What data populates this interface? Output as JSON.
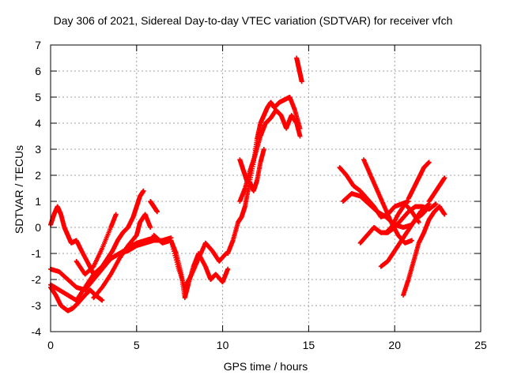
{
  "chart_data": {
    "type": "scatter",
    "title": "Day 306 of 2021, Sidereal Day-to-day VTEC variation (SDTVAR) for receiver vfch",
    "xlabel": "GPS time / hours",
    "ylabel": "SDTVAR / TECUs",
    "xlim": [
      0,
      25
    ],
    "ylim": [
      -4,
      7
    ],
    "x_ticks": [
      "0",
      "5",
      "10",
      "15",
      "20",
      "25"
    ],
    "y_ticks": [
      "-4",
      "-3",
      "-2",
      "-1",
      "0",
      "1",
      "2",
      "3",
      "4",
      "5",
      "6",
      "7"
    ],
    "grid": true,
    "marker": "plus",
    "series_color": "#ff0000",
    "series": [
      {
        "x": [
          0,
          0.5,
          1,
          1.5,
          2,
          2.5,
          3,
          3.5,
          4,
          4.5,
          5,
          5.5,
          6
        ],
        "y": [
          -1.6,
          -1.7,
          -2.0,
          -2.3,
          -2.4,
          -2.0,
          -1.6,
          -1.2,
          -1.0,
          -0.8,
          -0.6,
          -0.5,
          -0.4
        ]
      },
      {
        "x": [
          0,
          0.5,
          1,
          1.5,
          2,
          2.5,
          3,
          3.5,
          4,
          4.5,
          5,
          5.5,
          6,
          6.5,
          7
        ],
        "y": [
          -2.2,
          -2.4,
          -2.6,
          -2.8,
          -2.3,
          -1.8,
          -1.5,
          -1.2,
          -1.0,
          -0.9,
          -0.7,
          -0.6,
          -0.5,
          -0.5,
          -0.4
        ]
      },
      {
        "x": [
          0,
          0.3,
          0.6,
          1,
          1.3,
          1.6,
          2,
          2.3,
          2.6,
          3
        ],
        "y": [
          -2.3,
          -2.6,
          -3.0,
          -3.2,
          -3.1,
          -2.9,
          -2.6,
          -2.4,
          -2.6,
          -2.8
        ]
      },
      {
        "x": [
          0,
          0.2,
          0.4,
          0.6,
          0.8,
          1.0,
          1.2,
          1.5,
          1.8,
          2.2,
          2.5
        ],
        "y": [
          0.1,
          0.5,
          0.8,
          0.5,
          0.0,
          -0.3,
          -0.6,
          -0.5,
          -0.9,
          -1.4,
          -1.8
        ]
      },
      {
        "x": [
          2.5,
          3,
          3.5,
          4,
          4.5,
          5,
          5.2,
          5.5,
          5.8
        ],
        "y": [
          -2.7,
          -2.3,
          -1.8,
          -1.2,
          -0.7,
          -0.3,
          0.2,
          0.5,
          0.0
        ]
      },
      {
        "x": [
          3,
          3.3,
          3.6,
          3.9,
          4.2,
          4.5,
          4.8,
          5.0,
          5.2,
          5.4
        ],
        "y": [
          -1.5,
          -1.2,
          -0.9,
          -0.5,
          -0.2,
          0.0,
          0.4,
          0.8,
          1.2,
          1.4
        ]
      },
      {
        "x": [
          1.5,
          2,
          2.5,
          3,
          3.5,
          3.8
        ],
        "y": [
          -1.3,
          -1.8,
          -1.5,
          -0.8,
          0.0,
          0.5
        ]
      },
      {
        "x": [
          5.8,
          6.0,
          6.2
        ],
        "y": [
          1.0,
          0.8,
          0.6
        ]
      },
      {
        "x": [
          6,
          6.5,
          7,
          7.3,
          7.6,
          7.8,
          8.0,
          8.3,
          8.6,
          9,
          9.3,
          9.6,
          10,
          10.3
        ],
        "y": [
          -0.3,
          -0.6,
          -0.5,
          -1.0,
          -1.8,
          -2.7,
          -2.2,
          -1.5,
          -1.0,
          -1.5,
          -2.0,
          -1.8,
          -2.1,
          -1.6
        ]
      },
      {
        "x": [
          7,
          7.4,
          7.8,
          8.2,
          8.6,
          9.0,
          9.4,
          9.8,
          10.2
        ],
        "y": [
          -0.5,
          -1.5,
          -2.3,
          -1.8,
          -1.2,
          -0.6,
          -0.9,
          -1.3,
          -1.0
        ]
      },
      {
        "x": [
          10.3,
          10.6,
          10.9,
          11.1,
          11.3,
          11.5,
          11.8,
          12.0,
          12.2,
          12.4,
          12.6,
          12.8,
          13.0,
          13.3,
          13.6,
          13.9,
          14.2,
          14.5
        ],
        "y": [
          -1.0,
          -0.5,
          0.2,
          0.4,
          0.8,
          1.5,
          2.5,
          3.4,
          4.0,
          4.3,
          4.6,
          4.8,
          4.6,
          4.8,
          4.9,
          5.0,
          4.5,
          3.8
        ]
      },
      {
        "x": [
          11,
          11.3,
          11.6,
          11.9,
          12.2,
          12.5,
          12.8,
          13.1,
          13.4,
          13.7,
          14.0,
          14.3,
          14.5
        ],
        "y": [
          1.0,
          1.5,
          2.2,
          2.8,
          3.5,
          4.0,
          4.2,
          4.5,
          4.3,
          3.8,
          4.3,
          4.0,
          3.5
        ]
      },
      {
        "x": [
          11.0,
          11.2,
          11.4,
          11.6,
          11.8,
          12.0,
          12.2,
          12.4
        ],
        "y": [
          2.6,
          2.2,
          1.8,
          1.7,
          1.4,
          1.8,
          2.5,
          3.0
        ]
      },
      {
        "x": [
          14.3,
          14.4,
          14.5,
          14.6
        ],
        "y": [
          6.5,
          6.2,
          5.9,
          5.6
        ]
      },
      {
        "x": [
          16.8,
          17.2,
          17.6,
          18,
          18.4,
          18.8,
          19.2,
          19.6,
          20,
          20.4,
          20.8
        ],
        "y": [
          2.3,
          2.0,
          1.6,
          1.4,
          1.1,
          0.8,
          0.4,
          0.5,
          0.8,
          0.9,
          1.0
        ]
      },
      {
        "x": [
          17,
          17.5,
          18,
          18.5,
          19,
          19.5,
          20,
          20.5,
          21,
          21.5,
          22
        ],
        "y": [
          1.0,
          1.3,
          1.2,
          0.9,
          0.6,
          0.4,
          0.1,
          0.0,
          0.1,
          0.6,
          0.9
        ]
      },
      {
        "x": [
          18,
          18.4,
          18.8,
          19.2,
          19.6,
          20,
          20.4,
          20.8,
          21.2,
          21.6,
          22,
          22.4
        ],
        "y": [
          -0.6,
          -0.3,
          0.0,
          -0.2,
          -0.2,
          0.0,
          0.3,
          0.6,
          0.8,
          0.8,
          0.7,
          0.9
        ]
      },
      {
        "x": [
          18.2,
          18.6,
          19.0,
          19.4,
          19.8,
          20.2,
          20.6,
          21.0
        ],
        "y": [
          2.6,
          2.0,
          1.4,
          0.8,
          0.2,
          -0.3,
          -0.6,
          -0.5
        ]
      },
      {
        "x": [
          19.2,
          19.6,
          20,
          20.4,
          20.8,
          21.2,
          21.6,
          22
        ],
        "y": [
          -1.5,
          -1.3,
          -0.9,
          -0.5,
          -0.1,
          0.3,
          0.5,
          0.8
        ]
      },
      {
        "x": [
          20.5,
          20.8,
          21.1,
          21.4,
          21.7,
          22,
          22.3,
          22.6,
          22.9
        ],
        "y": [
          -2.6,
          -2.0,
          -1.3,
          -0.6,
          -0.2,
          0.3,
          0.6,
          0.8,
          0.5
        ]
      },
      {
        "x": [
          20.8,
          21.1,
          21.4,
          21.7,
          22
        ],
        "y": [
          1.1,
          1.5,
          1.9,
          2.3,
          2.5
        ]
      },
      {
        "x": [
          22,
          22.3,
          22.6,
          22.9
        ],
        "y": [
          1.0,
          1.3,
          1.6,
          1.9
        ]
      },
      {
        "x": [
          19.5,
          19.8,
          20.2,
          20.6,
          21.0,
          21.4
        ],
        "y": [
          -0.2,
          0.0,
          0.5,
          0.9,
          0.6,
          0.2
        ]
      }
    ]
  }
}
